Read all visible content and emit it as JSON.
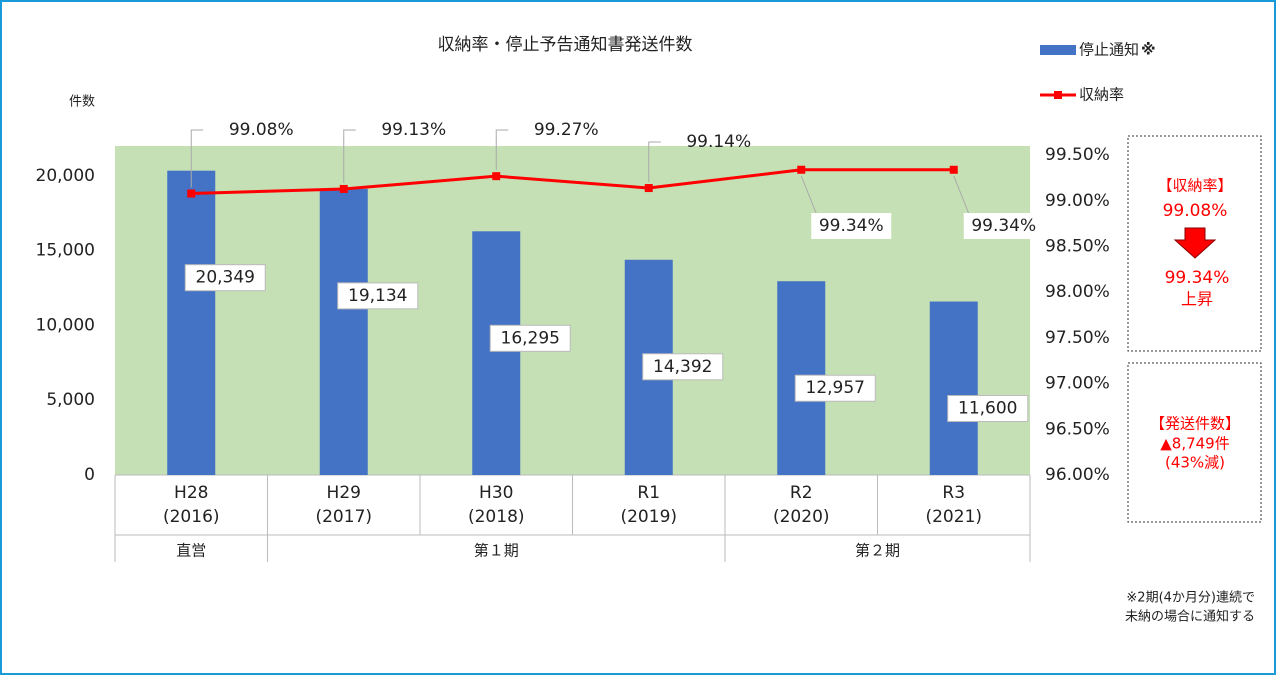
{
  "chart_data": {
    "type": "bar_line",
    "title": "収納率・停止予告通知書発送件数",
    "y_label": "件数",
    "categories": [
      "H28\n(2016)",
      "H29\n(2017)",
      "H30\n(2018)",
      "R1\n(2019)",
      "R2\n(2020)",
      "R3\n(2021)"
    ],
    "groups": [
      {
        "label": "直営",
        "span": 1
      },
      {
        "label": "第１期",
        "span": 3
      },
      {
        "label": "第２期",
        "span": 2
      }
    ],
    "series": [
      {
        "name": "停止通知",
        "color": "#4472c4",
        "values": [
          20349,
          19134,
          16295,
          14392,
          12957,
          11600
        ],
        "value_labels": [
          "20,349",
          "19,134",
          "16,295",
          "14,392",
          "12,957",
          "11,600"
        ]
      },
      {
        "name": "収納率",
        "color": "#ff0000",
        "axis": "y2",
        "values": [
          99.08,
          99.13,
          99.27,
          99.14,
          99.34,
          99.34
        ],
        "value_labels": [
          "99.08%",
          "99.13%",
          "99.27%",
          "99.14%",
          "99.34%",
          "99.34%"
        ]
      }
    ],
    "legend_note": "※",
    "ylim": [
      0,
      22000
    ],
    "yticks": [
      0,
      {
        "value": 5000,
        "label": "5,000"
      },
      {
        "value": 10000,
        "label": "10,000"
      },
      {
        "value": 15000,
        "label": "15,000"
      },
      {
        "value": 20000,
        "label": "20,000"
      }
    ],
    "y2lim": [
      96,
      99.6
    ],
    "y2ticks": [
      {
        "value": 96,
        "label": "96.00%"
      },
      {
        "value": 96.5,
        "label": "96.50%"
      },
      {
        "value": 97,
        "label": "97.00%"
      },
      {
        "value": 97.5,
        "label": "97.50%"
      },
      {
        "value": 98,
        "label": "98.00%"
      },
      {
        "value": 98.5,
        "label": "98.50%"
      },
      {
        "value": 99,
        "label": "99.00%"
      },
      {
        "value": 99.5,
        "label": "99.50%"
      }
    ],
    "plot_background": "#c5e0b4",
    "box1": {
      "heading": "【収納率】",
      "from": "99.08%",
      "to": "99.34%",
      "result": "上昇"
    },
    "box2": {
      "heading": "【発送件数】",
      "change": "▲8,749件",
      "percent": "(43%減)"
    },
    "footnote": [
      "※2期(4か月分)連続で",
      "未納の場合に通知する"
    ]
  }
}
